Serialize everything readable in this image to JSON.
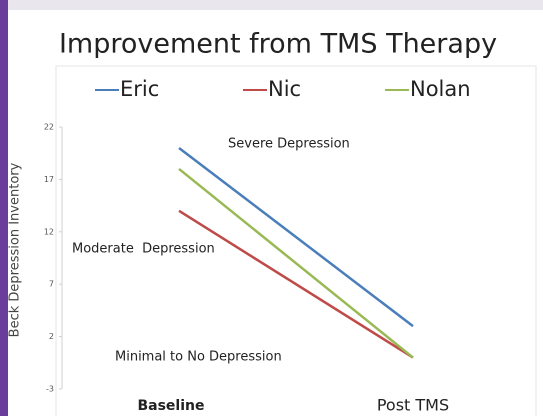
{
  "chart_data": {
    "type": "line",
    "title": "Improvement from TMS Therapy",
    "y_label": "Beck Depression Inventory",
    "categories": [
      "Baseline",
      "Post TMS"
    ],
    "series": [
      {
        "name": "Eric",
        "color": "#4a7ebb",
        "values": [
          20,
          3
        ]
      },
      {
        "name": "Nic",
        "color": "#be4b48",
        "values": [
          14,
          0
        ]
      },
      {
        "name": "Nolan",
        "color": "#98b954",
        "values": [
          18,
          0
        ]
      }
    ],
    "annotations": [
      "Severe Depression",
      "Moderate  Depression",
      "Minimal to No Depression"
    ],
    "ylim": [
      -3,
      22
    ],
    "yticks": [
      -3,
      2,
      7,
      12,
      17,
      22
    ],
    "grid": false,
    "legend": "top"
  }
}
